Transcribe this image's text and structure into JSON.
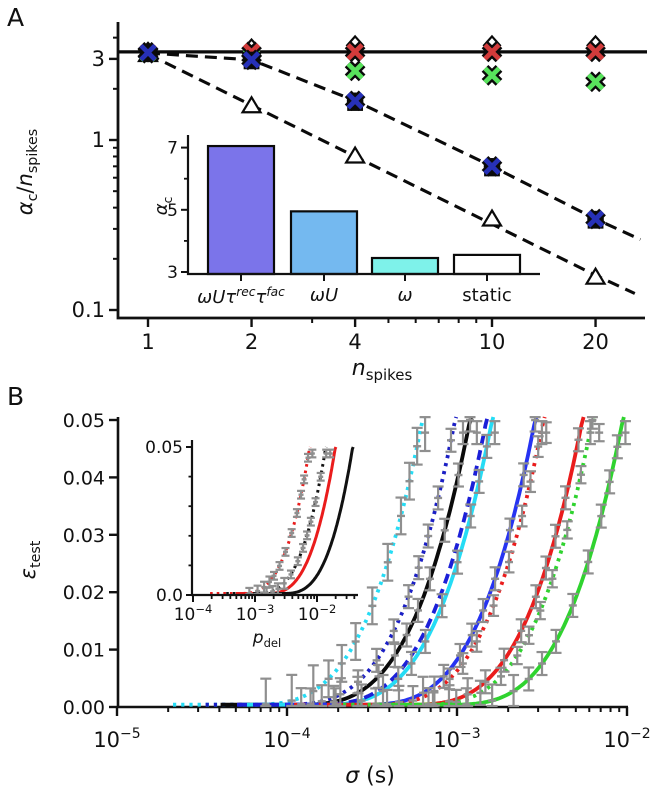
{
  "figure": {
    "background": "#ffffff"
  },
  "panel_a": {
    "label": "A",
    "x_tick_labels": [
      "1",
      "2",
      "4",
      "10",
      "20"
    ],
    "y_tick_labels": [
      "3",
      "1",
      "0.1"
    ],
    "ylabel": {
      "v1": "α",
      "s1": "c",
      "sep": "/",
      "v2": "n",
      "s2": "spikes"
    },
    "xlabel": {
      "v": "n",
      "s": "spikes"
    }
  },
  "panel_a_inset": {
    "ylabel": {
      "v": "α",
      "s": "c"
    },
    "y_tick_labels": [
      "3",
      "5",
      "7"
    ],
    "categories": [
      {
        "italic": true,
        "segs": [
          {
            "t": "ωUτ",
            "sup": "rec"
          },
          {
            "t": "τ",
            "sup": "fac"
          }
        ]
      },
      {
        "italic": true,
        "segs": [
          {
            "t": "ωU",
            "sup": ""
          }
        ]
      },
      {
        "italic": true,
        "segs": [
          {
            "t": "ω",
            "sup": ""
          }
        ]
      },
      {
        "italic": false,
        "segs": [
          {
            "t": "static",
            "sup": ""
          }
        ]
      }
    ]
  },
  "panel_b": {
    "label": "B",
    "y_tick_labels": [
      "0.00",
      "0.01",
      "0.02",
      "0.03",
      "0.04",
      "0.05"
    ],
    "x_tick_exponents": [
      "−5",
      "−4",
      "−3",
      "−2"
    ],
    "ylabel": {
      "v": "ε",
      "s": "test"
    },
    "xlabel": {
      "v": "σ",
      "rest": " (s)"
    }
  },
  "panel_b_inset": {
    "y_tick_labels": [
      "0.0",
      "0.05"
    ],
    "x_tick_exponents": [
      "−4",
      "−3",
      "−2"
    ],
    "xlabel": {
      "v": "p",
      "s": "del"
    }
  },
  "chart_data": {
    "errorbar_color": "#8f8f8f",
    "panel_a_scatter": {
      "type": "scatter",
      "xscale": "log",
      "yscale": "log",
      "xlim": [
        0.82,
        27.8
      ],
      "ylim": [
        0.089,
        5.0
      ],
      "x": [
        1,
        2,
        4,
        10,
        20
      ],
      "hline_y": 3.3,
      "x_minor_ticks": [
        3,
        5,
        6,
        7,
        8,
        9
      ],
      "y_major_ticks": [
        3,
        1,
        0.1
      ],
      "y_minor_ticks": [
        0.2,
        0.3,
        0.4,
        0.5,
        0.6,
        0.7,
        0.8,
        0.9,
        2,
        4
      ],
      "series": [
        {
          "name": "open-diamond",
          "marker": "diamond",
          "fill": "#ffffff",
          "values": [
            3.3,
            3.45,
            3.6,
            3.6,
            3.6
          ]
        },
        {
          "name": "open-square",
          "marker": "square",
          "fill": "#ffffff",
          "values": [
            3.22,
            2.9,
            1.65,
            0.68,
            0.335
          ]
        },
        {
          "name": "open-triangle",
          "marker": "triangle",
          "fill": "#ffffff",
          "values": [
            3.18,
            1.59,
            0.805,
            0.343,
            0.156
          ]
        },
        {
          "name": "green-x",
          "marker": "x",
          "color": "#58e35c",
          "values": [
            3.24,
            3.1,
            2.55,
            2.4,
            2.2
          ]
        },
        {
          "name": "red-x",
          "marker": "x",
          "color": "#d23b3b",
          "values": [
            3.28,
            3.3,
            3.3,
            3.3,
            3.3
          ]
        },
        {
          "name": "blue-circle",
          "marker": "circle",
          "fill": "#5156dd",
          "values": [
            3.25,
            2.96,
            1.7,
            0.7,
            0.343
          ]
        },
        {
          "name": "blue-x",
          "marker": "x",
          "color": "#2731b8",
          "values": [
            3.27,
            2.96,
            1.7,
            0.7,
            0.343
          ]
        }
      ],
      "dashed_lines": [
        {
          "name": "upper-dashed",
          "points": [
            [
              1,
              3.25
            ],
            [
              2,
              2.96
            ],
            [
              4,
              1.7
            ],
            [
              10,
              0.7
            ],
            [
              20,
              0.343
            ],
            [
              27,
              0.26
            ]
          ]
        },
        {
          "name": "lower-dashed",
          "points": [
            [
              1,
              3.2
            ],
            [
              2,
              1.6
            ],
            [
              4,
              0.8
            ],
            [
              10,
              0.32
            ],
            [
              20,
              0.16
            ],
            [
              26,
              0.125
            ]
          ]
        }
      ]
    },
    "panel_a_inset_bar": {
      "type": "bar",
      "ylabel_plain": "α_c",
      "categories_plain": [
        "ωUτrecτfac",
        "ωU",
        "ω",
        "static"
      ],
      "values": [
        7.05,
        4.95,
        3.45,
        3.55
      ],
      "colors": [
        "#7b74ea",
        "#74b9f0",
        "#7ef2ea",
        "#ffffff"
      ],
      "baseline": 2.94,
      "ylim": [
        2.94,
        7.45
      ],
      "y_ticks": [
        3,
        5,
        7
      ],
      "y_minor_ticks": [
        4,
        6
      ]
    },
    "panel_b_curves": {
      "type": "line",
      "xscale": "log",
      "xlim": [
        1e-05,
        0.01
      ],
      "ylim": [
        0.0,
        0.05
      ],
      "rise_span_decades": 1.05,
      "rise_power": 3.2,
      "curves": [
        {
          "name": "cyan-dotted",
          "color": "#25dcf5",
          "style": "dotted",
          "sigma_at_eps_005": 0.00063,
          "eb_err": 0.0032
        },
        {
          "name": "blue-dotted",
          "color": "#1b1fc4",
          "style": "dotted",
          "sigma_at_eps_005": 0.00098,
          "eb_err": 0.002
        },
        {
          "name": "black-solid",
          "color": "#0a0a0a",
          "style": "solid",
          "sigma_at_eps_005": 0.0012,
          "eb_err": 0.002
        },
        {
          "name": "cyan-solid",
          "color": "#25dcf5",
          "style": "solid",
          "sigma_at_eps_005": 0.00162,
          "eb_err": 0.002
        },
        {
          "name": "blue-dashed",
          "color": "#1b1fd8",
          "style": "dashed",
          "sigma_at_eps_005": 0.0015,
          "eb_err": 0
        },
        {
          "name": "blue-solid",
          "color": "#2633f2",
          "style": "solid",
          "sigma_at_eps_005": 0.0029,
          "eb_err": 0.002
        },
        {
          "name": "red-dotted",
          "color": "#ea1c1c",
          "style": "dotted",
          "sigma_at_eps_005": 0.00325,
          "eb_err": 0.0018
        },
        {
          "name": "red-solid",
          "color": "#ea1c1c",
          "style": "solid",
          "sigma_at_eps_005": 0.0055,
          "eb_err": 0.002
        },
        {
          "name": "green-dotted",
          "color": "#2fd32f",
          "style": "dotted",
          "sigma_at_eps_005": 0.0063,
          "eb_err": 0.0015
        },
        {
          "name": "green-solid",
          "color": "#2fd32f",
          "style": "solid",
          "sigma_at_eps_005": 0.0095,
          "eb_err": 0.002
        }
      ],
      "eb_t_positions": [
        0.12,
        0.25,
        0.37,
        0.47,
        0.56,
        0.64,
        0.72,
        0.79,
        0.86,
        0.92,
        0.98,
        1.03
      ]
    },
    "panel_b_inset_curves": {
      "type": "line",
      "xscale": "log",
      "xlim": [
        0.0001,
        0.048
      ],
      "ylim": [
        0.0,
        0.05
      ],
      "rise_span_decades": 1.15,
      "rise_power": 3.0,
      "curves": [
        {
          "name": "inset-red-dotted",
          "color": "#ea1c1c",
          "style": "dotted",
          "p_at_eps_005": 0.0077,
          "eb_err": 0.0013
        },
        {
          "name": "inset-black-dotted",
          "color": "#111111",
          "style": "dotted",
          "p_at_eps_005": 0.014,
          "eb_err": 0.0013
        },
        {
          "name": "inset-red-solid",
          "color": "#ea1c1c",
          "style": "solid",
          "p_at_eps_005": 0.02,
          "eb_err": 0
        },
        {
          "name": "inset-black-solid",
          "color": "#111111",
          "style": "solid",
          "p_at_eps_005": 0.038,
          "eb_err": 0
        }
      ],
      "eb_t_positions": [
        0.15,
        0.25,
        0.34,
        0.43,
        0.51,
        0.59,
        0.66,
        0.73,
        0.8,
        0.87,
        0.93,
        0.99,
        1.04
      ]
    }
  }
}
